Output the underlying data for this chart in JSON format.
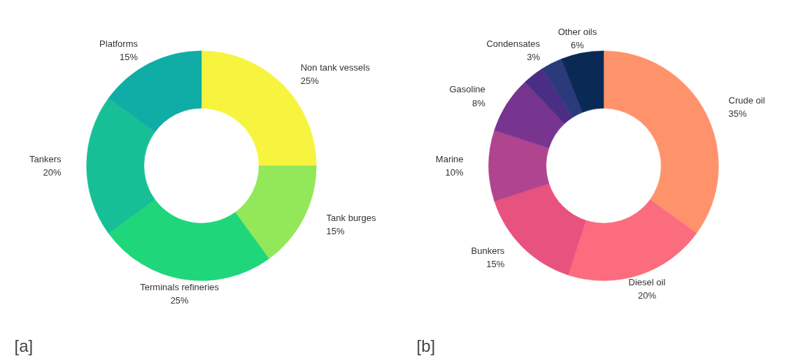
{
  "chart_data": [
    {
      "type": "donut",
      "title": "[a]",
      "categories": [
        "Non tank vessels",
        "Tank burges",
        "Terminals refineries",
        "Tankers",
        "Platforms"
      ],
      "values": [
        25,
        15,
        25,
        20,
        15
      ],
      "value_labels": [
        "25%",
        "15%",
        "25%",
        "20%",
        "15%"
      ],
      "colors": [
        "#f7f43f",
        "#93e85a",
        "#1fd67a",
        "#17bf96",
        "#10ada6"
      ]
    },
    {
      "type": "donut",
      "title": "[b]",
      "categories": [
        "Crude oil",
        "Diesel oil",
        "Bunkers",
        "Marine",
        "Gasoline",
        null,
        "Condensates",
        "Other oils"
      ],
      "values": [
        35,
        20,
        15,
        10,
        8,
        3,
        3,
        6
      ],
      "value_labels": [
        "35%",
        "20%",
        "15%",
        "10%",
        "8%",
        null,
        "3%",
        "6%"
      ],
      "colors": [
        "#fe936b",
        "#fb6c7e",
        "#e8527f",
        "#b0448f",
        "#773590",
        "#4a2e86",
        "#2a3a7a",
        "#0a2a55"
      ]
    }
  ]
}
